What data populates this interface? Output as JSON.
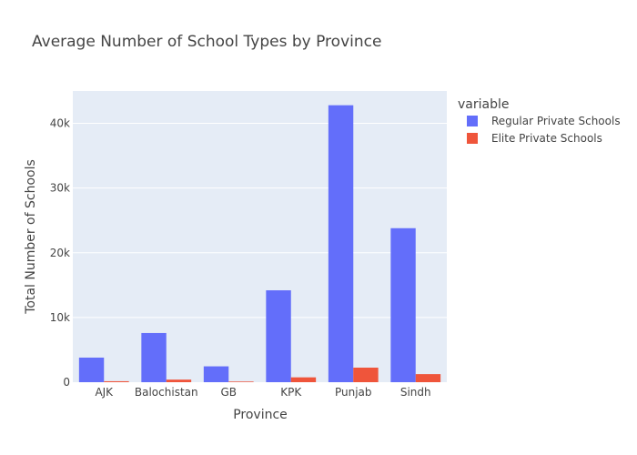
{
  "chart_data": {
    "type": "bar",
    "title": "Average Number of School Types by Province",
    "xlabel": "Province",
    "ylabel": "Total Number of Schools",
    "categories": [
      "AJK",
      "Balochistan",
      "GB",
      "KPK",
      "Punjab",
      "Sindh"
    ],
    "series": [
      {
        "name": "Regular Private Schools",
        "color": "#636efa",
        "values": [
          3800,
          7600,
          2450,
          14200,
          42800,
          23800
        ]
      },
      {
        "name": "Elite Private Schools",
        "color": "#ef553b",
        "values": [
          150,
          400,
          100,
          750,
          2250,
          1250
        ]
      }
    ],
    "ylim": [
      0,
      45000
    ],
    "yticks": [
      0,
      10000,
      20000,
      30000,
      40000
    ],
    "ytick_labels": [
      "0",
      "10k",
      "20k",
      "30k",
      "40k"
    ],
    "legend_title": "variable",
    "legend_position": "top-right",
    "grid": true,
    "plot_background": "#e5ecf6"
  }
}
